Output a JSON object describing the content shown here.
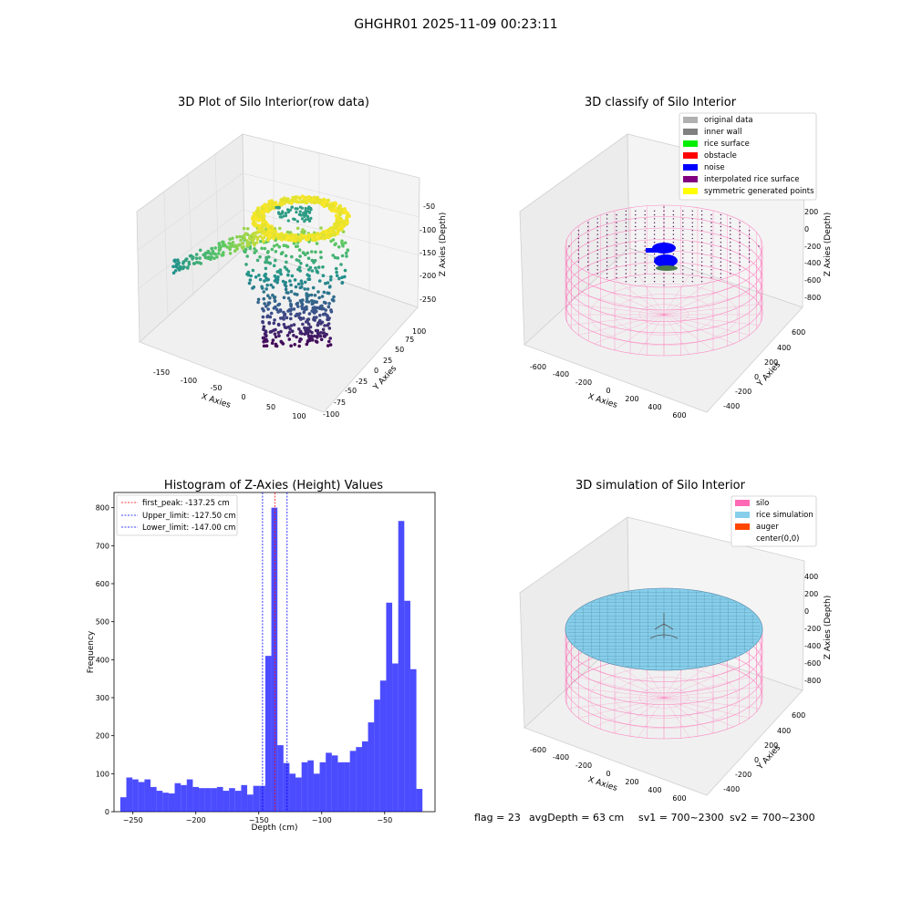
{
  "suptitle": "GHGHR01 2025-11-09 00:23:11",
  "panels": {
    "raw": {
      "title": "3D Plot of Silo Interior(row data)",
      "xlabel": "X Axies",
      "ylabel": "Y Axies",
      "zlabel": "Z Axies (Depth)",
      "xticks": [
        "-150",
        "-100",
        "-50",
        "0",
        "50",
        "100"
      ],
      "yticks": [
        "100",
        "75",
        "50",
        "25",
        "0",
        "-25",
        "-50",
        "-75",
        "-100"
      ],
      "zticks": [
        "-50",
        "-100",
        "-150",
        "-200",
        "-250"
      ]
    },
    "classify": {
      "title": "3D classify of Silo Interior",
      "xlabel": "X Axies",
      "ylabel": "Y Axies",
      "zlabel": "Z Axies (Depth)",
      "xticks": [
        "-600",
        "-400",
        "-200",
        "0",
        "200",
        "400",
        "600"
      ],
      "yticks": [
        "600",
        "400",
        "200",
        "0",
        "-200",
        "-400",
        "-600"
      ],
      "zticks": [
        "200",
        "0",
        "-200",
        "-400",
        "-600",
        "-800"
      ],
      "legend": [
        {
          "label": "original data",
          "color": "#b0b0b0"
        },
        {
          "label": "inner wall",
          "color": "#808080"
        },
        {
          "label": "rice surface",
          "color": "#00ee00"
        },
        {
          "label": "obstacle",
          "color": "#ff0000"
        },
        {
          "label": "noise",
          "color": "#0000ff"
        },
        {
          "label": "interpolated rice surface",
          "color": "#800080"
        },
        {
          "label": "symmetric generated points",
          "color": "#ffff00"
        }
      ]
    },
    "simulation": {
      "title": "3D simulation of Silo Interior",
      "xlabel": "X Axies",
      "ylabel": "Y Axies",
      "zlabel": "Z Axies (Depth)",
      "xticks": [
        "-600",
        "-400",
        "-200",
        "0",
        "200",
        "400",
        "600"
      ],
      "yticks": [
        "600",
        "400",
        "200",
        "0",
        "-200",
        "-400",
        "-600"
      ],
      "zticks": [
        "400",
        "200",
        "0",
        "-200",
        "-400",
        "-600",
        "-800"
      ],
      "legend": [
        {
          "label": "silo",
          "color": "#ff69b4"
        },
        {
          "label": "rice simulation",
          "color": "#87ceeb"
        },
        {
          "label": "auger",
          "color": "#ff4500"
        },
        {
          "label": "center(0,0)",
          "color": "#ffffff"
        }
      ]
    }
  },
  "colors": {
    "hist_bar": "#0000ff",
    "first_peak_line": "#ff0000",
    "limit_line": "#0000ff",
    "silo_wire": "#ff69b4",
    "rice_top": "#87ceeb"
  },
  "chart_data": [
    {
      "type": "bar",
      "title": "Histogram of Z-Axies (Height) Values",
      "xlabel": "Depth (cm)",
      "ylabel": "Frequency",
      "xlim": [
        -265,
        -10
      ],
      "ylim": [
        0,
        840
      ],
      "xticks": [
        -250,
        -200,
        -150,
        -100,
        -50
      ],
      "yticks": [
        0,
        100,
        200,
        300,
        400,
        500,
        600,
        700,
        800
      ],
      "bin_start": -260,
      "bin_width": 4.8,
      "values": [
        38,
        90,
        85,
        78,
        85,
        65,
        55,
        50,
        48,
        75,
        70,
        85,
        65,
        62,
        62,
        62,
        65,
        55,
        62,
        55,
        70,
        45,
        68,
        68,
        410,
        800,
        175,
        128,
        100,
        90,
        130,
        135,
        100,
        130,
        155,
        148,
        130,
        130,
        160,
        170,
        185,
        235,
        295,
        345,
        550,
        390,
        765,
        555,
        375,
        60
      ],
      "lines": [
        {
          "label": "first_peak: -137.25 cm",
          "x": -137.25
        },
        {
          "label": "Upper_limit: -127.50 cm",
          "x": -127.5
        },
        {
          "label": "Lower_limit: -147.00 cm",
          "x": -147.0
        }
      ]
    }
  ],
  "footer": {
    "flag": "flag = 23",
    "avg": "avgDepth = 63 cm",
    "sv1": "sv1 = 700~2300",
    "sv2": "sv2 = 700~2300"
  }
}
